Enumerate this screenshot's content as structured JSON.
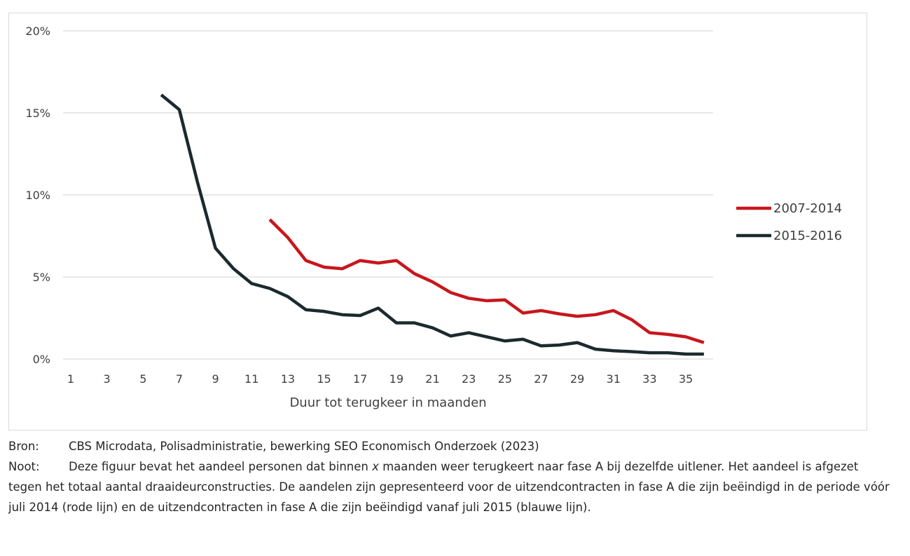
{
  "chart_data": {
    "type": "line",
    "title": "",
    "xlabel": "Duur tot terugkeer in maanden",
    "ylabel": "",
    "ylim": [
      0,
      20
    ],
    "xlim": [
      1,
      36
    ],
    "yticks": [
      "0%",
      "5%",
      "10%",
      "15%",
      "20%"
    ],
    "ytick_values": [
      0,
      5,
      10,
      15,
      20
    ],
    "xticks": [
      1,
      3,
      5,
      7,
      9,
      11,
      13,
      15,
      17,
      19,
      21,
      23,
      25,
      27,
      29,
      31,
      33,
      35
    ],
    "grid": "horizontal",
    "legend_position": "right",
    "series": [
      {
        "name": "2007-2014",
        "color": "#c8161d",
        "x": [
          12,
          13,
          14,
          15,
          16,
          17,
          18,
          19,
          20,
          21,
          22,
          23,
          24,
          25,
          26,
          27,
          28,
          29,
          30,
          31,
          32,
          33,
          34,
          35,
          36
        ],
        "values": [
          8.5,
          7.4,
          6.0,
          5.6,
          5.5,
          6.0,
          5.85,
          6.0,
          5.2,
          4.7,
          4.05,
          3.7,
          3.55,
          3.6,
          2.8,
          2.95,
          2.75,
          2.6,
          2.7,
          2.95,
          2.4,
          1.6,
          1.5,
          1.35,
          1.0
        ]
      },
      {
        "name": "2015-2016",
        "color": "#1b2a2e",
        "x": [
          6,
          7,
          8,
          9,
          10,
          11,
          12,
          13,
          14,
          15,
          16,
          17,
          18,
          19,
          20,
          21,
          22,
          23,
          24,
          25,
          26,
          27,
          28,
          29,
          30,
          31,
          32,
          33,
          34,
          35,
          36
        ],
        "values": [
          16.1,
          15.2,
          10.8,
          6.75,
          5.5,
          4.6,
          4.3,
          3.8,
          3.0,
          2.9,
          2.7,
          2.65,
          3.1,
          2.2,
          2.2,
          1.9,
          1.4,
          1.6,
          1.35,
          1.1,
          1.2,
          0.8,
          0.85,
          1.0,
          0.6,
          0.5,
          0.45,
          0.38,
          0.38,
          0.3,
          0.3
        ]
      }
    ]
  },
  "notes": {
    "source_label": "Bron:",
    "source_text": "CBS Microdata, Polisadministratie, bewerking SEO Economisch Onderzoek (2023)",
    "note_label": "Noot:",
    "note_text_1": "Deze figuur bevat het aandeel personen dat binnen ",
    "note_italic": "x",
    "note_text_2": " maanden weer terugkeert naar fase A bij dezelfde uitlener. Het aandeel is afgezet tegen het totaal aantal draaideurconstructies. De aandelen zijn gepresenteerd voor de uitzendcontracten in fase A die zijn beëindigd in de periode vóór juli 2014 (rode lijn) en de uitzendcontracten in fase A die zijn beëindigd vanaf juli 2015 (blauwe lijn)."
  }
}
